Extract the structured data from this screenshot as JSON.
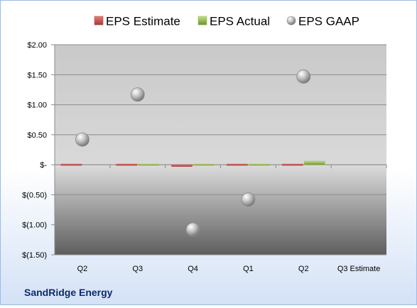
{
  "chart_data": {
    "type": "bar",
    "company": "SandRidge Energy",
    "categories": [
      "Q2",
      "Q3",
      "Q4",
      "Q1",
      "Q2",
      "Q3 Estimate"
    ],
    "y_tick_labels": [
      "$2.00",
      "$1.50",
      "$1.00",
      "$0.50",
      "$-",
      "$(0.50)",
      "$(1.00)",
      "$(1.50)"
    ],
    "ylim": [
      -1.5,
      2.0
    ],
    "legend_position": "top",
    "grid": true,
    "series": [
      {
        "name": "EPS Estimate",
        "type": "bar",
        "color": "#c0504d",
        "values": [
          0.01,
          -0.01,
          -0.03,
          0.01,
          -0.01,
          null
        ]
      },
      {
        "name": "EPS Actual",
        "type": "bar",
        "color": "#9bbb59",
        "values": [
          null,
          -0.01,
          -0.02,
          0.02,
          0.06,
          null
        ]
      },
      {
        "name": "EPS GAAP",
        "type": "scatter",
        "color": "#a6a6a6",
        "values": [
          0.42,
          1.17,
          -1.08,
          -0.58,
          1.47,
          null
        ]
      }
    ]
  }
}
